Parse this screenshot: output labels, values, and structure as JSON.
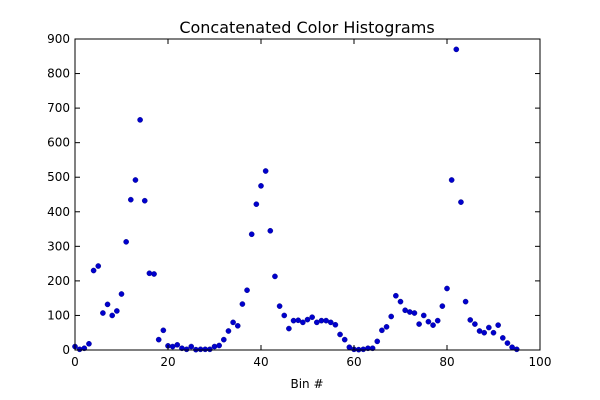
{
  "chart_data": {
    "type": "scatter",
    "title": "Concatenated Color Histograms",
    "xlabel": "Bin #",
    "ylabel": "",
    "xlim": [
      0,
      100
    ],
    "ylim": [
      0,
      900
    ],
    "xticks": [
      "0",
      "20",
      "40",
      "60",
      "80",
      "100"
    ],
    "yticks": [
      "0",
      "100",
      "200",
      "300",
      "400",
      "500",
      "600",
      "700",
      "800",
      "900"
    ],
    "grid": false,
    "marker_color": "#0000cc",
    "series": [
      {
        "x": [
          0,
          1,
          2,
          3,
          4,
          5,
          6,
          7,
          8,
          9,
          10,
          11,
          12,
          13,
          14,
          15,
          16,
          17,
          18,
          19,
          20,
          21,
          22,
          23,
          24,
          25,
          26,
          27,
          28,
          29,
          30,
          31,
          32,
          33,
          34,
          35,
          36,
          37,
          38,
          39,
          40,
          41,
          42,
          43,
          44,
          45,
          46,
          47,
          48,
          49,
          50,
          51,
          52,
          53,
          54,
          55,
          56,
          57,
          58,
          59,
          60,
          61,
          62,
          63,
          64,
          65,
          66,
          67,
          68,
          69,
          70,
          71,
          72,
          73,
          74,
          75,
          76,
          77,
          78,
          79,
          80,
          81,
          82,
          83,
          84,
          85,
          86,
          87,
          88,
          89,
          90,
          91,
          92,
          93,
          94,
          95
        ],
        "y": [
          10,
          2,
          5,
          18,
          230,
          243,
          107,
          132,
          100,
          113,
          162,
          313,
          435,
          492,
          666,
          432,
          222,
          220,
          30,
          57,
          12,
          10,
          15,
          5,
          2,
          10,
          1,
          2,
          2,
          2,
          10,
          13,
          30,
          55,
          80,
          70,
          133,
          173,
          335,
          422,
          475,
          518,
          345,
          213,
          127,
          100,
          62,
          85,
          86,
          80,
          88,
          95,
          80,
          85,
          85,
          80,
          73,
          45,
          30,
          8,
          2,
          1,
          2,
          5,
          5,
          25,
          57,
          67,
          97,
          157,
          140,
          115,
          110,
          107,
          75,
          100,
          82,
          72,
          85,
          127,
          178,
          492,
          870,
          428,
          140,
          87,
          75,
          55,
          50,
          65,
          50,
          72,
          35,
          20,
          8,
          2
        ]
      }
    ]
  }
}
